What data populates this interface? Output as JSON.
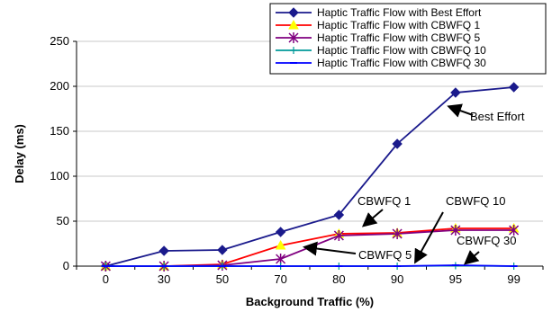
{
  "chart_data": {
    "type": "line",
    "title": "",
    "xlabel": "Background Traffic (%)",
    "ylabel": "Delay (ms)",
    "categories": [
      "0",
      "30",
      "50",
      "70",
      "80",
      "90",
      "95",
      "99"
    ],
    "ylim": [
      0,
      250
    ],
    "yticks": [
      0,
      50,
      100,
      150,
      200,
      250
    ],
    "grid": "horizontal",
    "legend_position": "top-right",
    "series": [
      {
        "name": "Haptic Traffic Flow with Best Effort",
        "color": "#1a1a8c",
        "marker": "diamond",
        "values": [
          0,
          17,
          18,
          38,
          57,
          136,
          193,
          199
        ]
      },
      {
        "name": "Haptic Traffic Flow with CBWFQ 1",
        "color": "#ff0000",
        "marker": "triangle",
        "marker_color": "#ffff00",
        "values": [
          0,
          0,
          2,
          23,
          36,
          37,
          42,
          42
        ]
      },
      {
        "name": "Haptic Traffic Flow with CBWFQ 5",
        "color": "#800080",
        "marker": "star",
        "values": [
          0,
          0,
          1,
          8,
          34,
          36,
          40,
          40
        ]
      },
      {
        "name": "Haptic Traffic Flow with CBWFQ 10",
        "color": "#009999",
        "marker": "plus",
        "values": [
          0,
          0,
          0,
          0,
          0,
          0,
          0.5,
          0
        ]
      },
      {
        "name": "Haptic Traffic Flow with CBWFQ 30",
        "color": "#0000ff",
        "marker": "dash",
        "values": [
          0,
          0,
          0,
          0,
          0,
          0,
          1,
          0
        ]
      }
    ],
    "annotations": [
      {
        "text": "Best Effort",
        "target_series": 0,
        "target_index": 6
      },
      {
        "text": "CBWFQ 1",
        "target_series": 1,
        "target_index": 4
      },
      {
        "text": "CBWFQ 10",
        "target_series": 3,
        "target_index": 5
      },
      {
        "text": "CBWFQ 5",
        "target_series": 2,
        "target_index": 4
      },
      {
        "text": "CBWFQ 30",
        "target_series": 4,
        "target_index": 6
      }
    ]
  }
}
